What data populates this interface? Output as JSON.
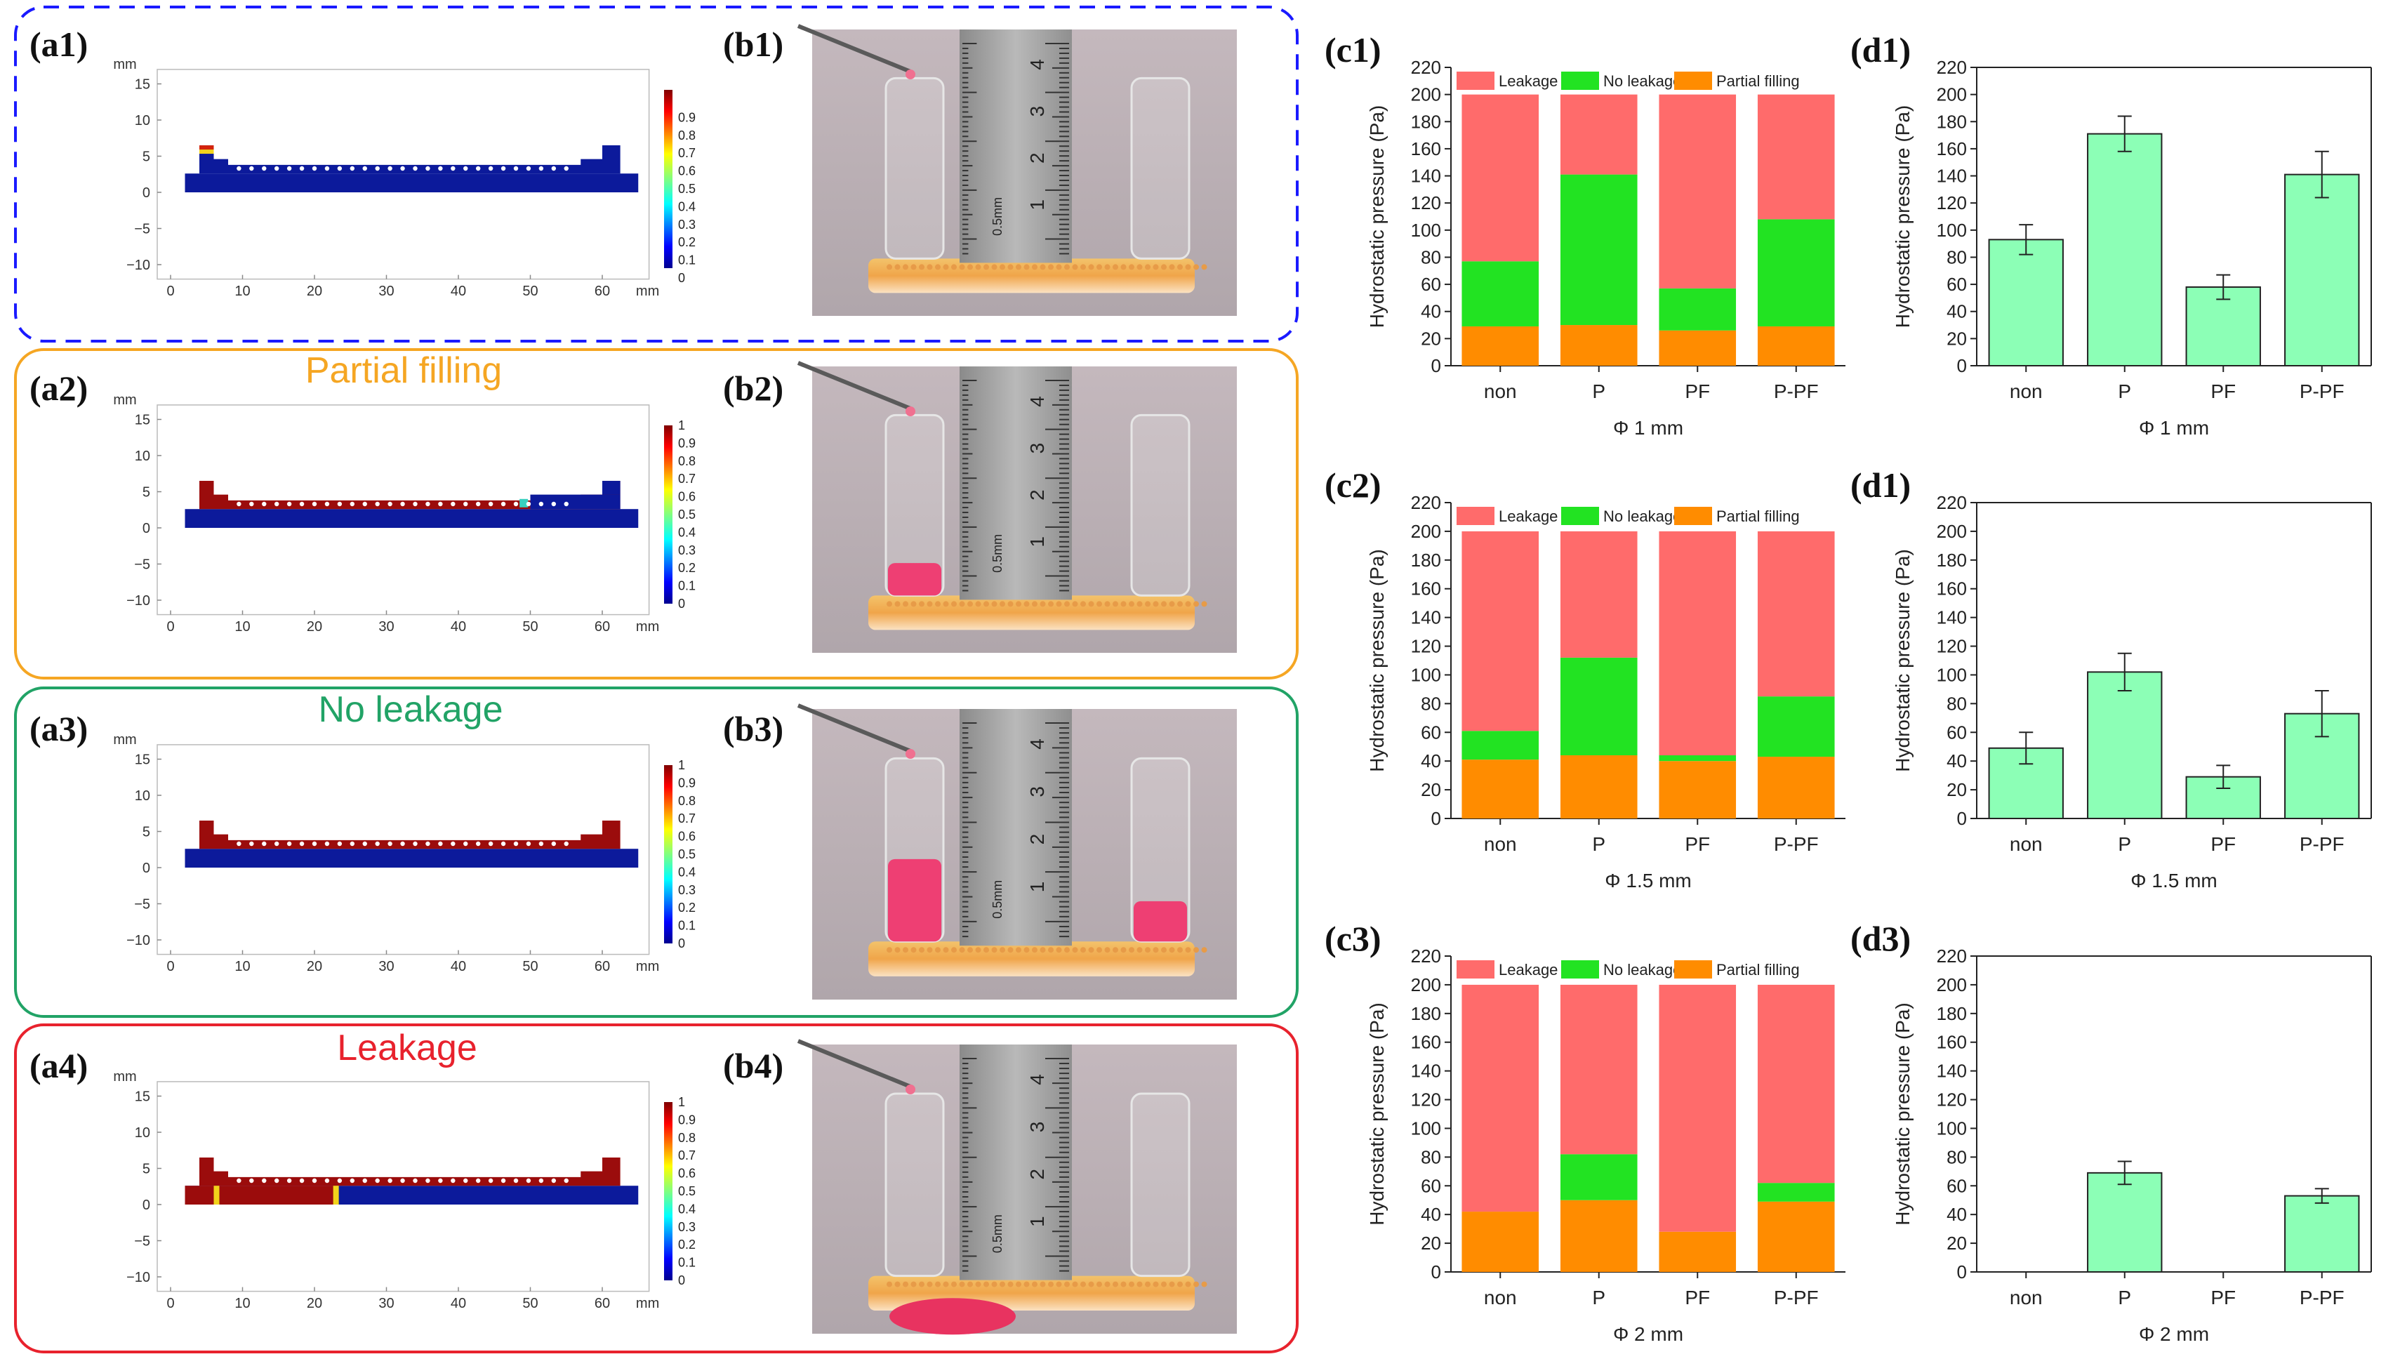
{
  "colors": {
    "leakage": "#ff6b6b",
    "no_leakage": "#22e322",
    "partial_filling": "#ff8c00",
    "bar_d": "#8cffb6",
    "frame_a1": "#1a1aff",
    "frame_partial": "#f5a623",
    "frame_noleak": "#21a366",
    "frame_leak": "#e8222d",
    "sim_fluid": "#9b0c0c",
    "sim_base": "#0c1a9b"
  },
  "rows": [
    {
      "sim_label": "(a1)",
      "photo_label": "(b1)",
      "state_title": "",
      "liquid": "None"
    },
    {
      "sim_label": "(a2)",
      "photo_label": "(b2)",
      "state_title": "Partial filling",
      "liquid": "Left tube partially filled"
    },
    {
      "sim_label": "(a3)",
      "photo_label": "(b3)",
      "state_title": "No leakage",
      "liquid": "Both tubes filled"
    },
    {
      "sim_label": "(a4)",
      "photo_label": "(b4)",
      "state_title": "Leakage",
      "liquid": "Leak beneath chip"
    }
  ],
  "simulation": {
    "unit": "mm",
    "x_ticks": [
      "0",
      "10",
      "20",
      "30",
      "40",
      "50",
      "60"
    ],
    "y_ticks": [
      "15",
      "10",
      "5",
      "0",
      "−5",
      "−10"
    ],
    "colorbar_ticks_first": [
      "0.9",
      "0.8",
      "0.7",
      "0.6",
      "0.5",
      "0.4",
      "0.3",
      "0.2",
      "0.1",
      "0"
    ],
    "colorbar_ticks": [
      "1",
      "0.9",
      "0.8",
      "0.7",
      "0.6",
      "0.5",
      "0.4",
      "0.3",
      "0.2",
      "0.1",
      "0"
    ]
  },
  "ruler": {
    "numbers": [
      "4",
      "3",
      "2",
      "1"
    ],
    "small_text": "0.5mm"
  },
  "chart_data": [
    {
      "id": "c1",
      "label": "(c1)",
      "type": "bar",
      "stacked": true,
      "categories": [
        "non",
        "P",
        "PF",
        "P-PF"
      ],
      "series": [
        {
          "name": "Partial filling",
          "values": [
            29,
            30,
            26,
            29
          ]
        },
        {
          "name": "No leakage",
          "values": [
            48,
            111,
            31,
            79
          ]
        },
        {
          "name": "Leakage",
          "values": [
            123,
            59,
            143,
            92
          ]
        }
      ],
      "legend": [
        "Leakage",
        "No leakage",
        "Partial filling"
      ],
      "ylabel": "Hydrostatic pressure (Pa)",
      "xlabel": "Φ 1 mm",
      "ylim": [
        0,
        220
      ],
      "yticks": [
        0,
        20,
        40,
        60,
        80,
        100,
        120,
        140,
        160,
        180,
        200,
        220
      ]
    },
    {
      "id": "d1",
      "label": "(d1)",
      "type": "bar",
      "categories": [
        "non",
        "P",
        "PF",
        "P-PF"
      ],
      "values": [
        93,
        171,
        58,
        141
      ],
      "errors": [
        11,
        13,
        9,
        17
      ],
      "ylabel": "Hydrostatic pressure (Pa)",
      "xlabel": "Φ 1 mm",
      "ylim": [
        0,
        220
      ],
      "yticks": [
        0,
        20,
        40,
        60,
        80,
        100,
        120,
        140,
        160,
        180,
        200,
        220
      ]
    },
    {
      "id": "c2",
      "label": "(c2)",
      "type": "bar",
      "stacked": true,
      "categories": [
        "non",
        "P",
        "PF",
        "P-PF"
      ],
      "series": [
        {
          "name": "Partial filling",
          "values": [
            41,
            44,
            40,
            43
          ]
        },
        {
          "name": "No leakage",
          "values": [
            20,
            68,
            4,
            42
          ]
        },
        {
          "name": "Leakage",
          "values": [
            139,
            88,
            156,
            115
          ]
        }
      ],
      "legend": [
        "Leakage",
        "No leakage",
        "Partial filling"
      ],
      "ylabel": "Hydrostatic pressure (Pa)",
      "xlabel": "Φ 1.5 mm",
      "ylim": [
        0,
        220
      ],
      "yticks": [
        0,
        20,
        40,
        60,
        80,
        100,
        120,
        140,
        160,
        180,
        200,
        220
      ]
    },
    {
      "id": "d2",
      "label": "(d1)",
      "type": "bar",
      "categories": [
        "non",
        "P",
        "PF",
        "P-PF"
      ],
      "values": [
        49,
        102,
        29,
        73
      ],
      "errors": [
        11,
        13,
        8,
        16
      ],
      "ylabel": "Hydrostatic pressure (Pa)",
      "xlabel": "Φ 1.5 mm",
      "ylim": [
        0,
        220
      ],
      "yticks": [
        0,
        20,
        40,
        60,
        80,
        100,
        120,
        140,
        160,
        180,
        200,
        220
      ]
    },
    {
      "id": "c3",
      "label": "(c3)",
      "type": "bar",
      "stacked": true,
      "categories": [
        "non",
        "P",
        "PF",
        "P-PF"
      ],
      "series": [
        {
          "name": "Partial filling",
          "values": [
            42,
            50,
            28,
            49
          ]
        },
        {
          "name": "No leakage",
          "values": [
            0,
            32,
            0,
            13
          ]
        },
        {
          "name": "Leakage",
          "values": [
            158,
            118,
            172,
            138
          ]
        }
      ],
      "legend": [
        "Leakage",
        "No leakage",
        "Partial filling"
      ],
      "ylabel": "Hydrostatic pressure (Pa)",
      "xlabel": "Φ 2 mm",
      "ylim": [
        0,
        220
      ],
      "yticks": [
        0,
        20,
        40,
        60,
        80,
        100,
        120,
        140,
        160,
        180,
        200,
        220
      ]
    },
    {
      "id": "d3",
      "label": "(d3)",
      "type": "bar",
      "categories": [
        "non",
        "P",
        "PF",
        "P-PF"
      ],
      "values": [
        0,
        69,
        0,
        53
      ],
      "errors": [
        0,
        8,
        0,
        5
      ],
      "ylabel": "Hydrostatic pressure (Pa)",
      "xlabel": "Φ 2 mm",
      "ylim": [
        0,
        220
      ],
      "yticks": [
        0,
        20,
        40,
        60,
        80,
        100,
        120,
        140,
        160,
        180,
        200,
        220
      ]
    }
  ]
}
